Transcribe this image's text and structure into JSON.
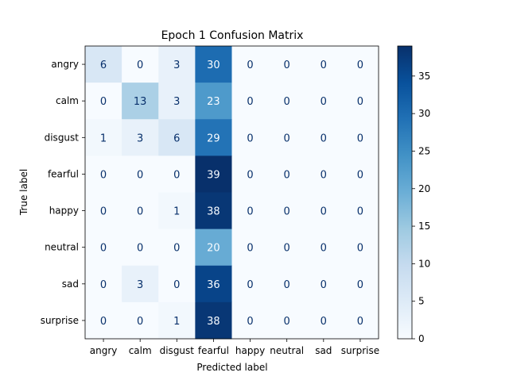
{
  "chart_data": {
    "type": "heatmap",
    "title": "Epoch 1 Confusion Matrix",
    "xlabel": "Predicted label",
    "ylabel": "True label",
    "x_categories": [
      "angry",
      "calm",
      "disgust",
      "fearful",
      "happy",
      "neutral",
      "sad",
      "surprise"
    ],
    "y_categories": [
      "angry",
      "calm",
      "disgust",
      "fearful",
      "happy",
      "neutral",
      "sad",
      "surprise"
    ],
    "values": [
      [
        6,
        0,
        3,
        30,
        0,
        0,
        0,
        0
      ],
      [
        0,
        13,
        3,
        23,
        0,
        0,
        0,
        0
      ],
      [
        1,
        3,
        6,
        29,
        0,
        0,
        0,
        0
      ],
      [
        0,
        0,
        0,
        39,
        0,
        0,
        0,
        0
      ],
      [
        0,
        0,
        1,
        38,
        0,
        0,
        0,
        0
      ],
      [
        0,
        0,
        0,
        20,
        0,
        0,
        0,
        0
      ],
      [
        0,
        3,
        0,
        36,
        0,
        0,
        0,
        0
      ],
      [
        0,
        0,
        1,
        38,
        0,
        0,
        0,
        0
      ]
    ],
    "colormap": "Blues",
    "color_range": [
      0,
      39
    ],
    "colorbar_ticks": [
      0,
      5,
      10,
      15,
      20,
      25,
      30,
      35
    ],
    "grid": false
  }
}
